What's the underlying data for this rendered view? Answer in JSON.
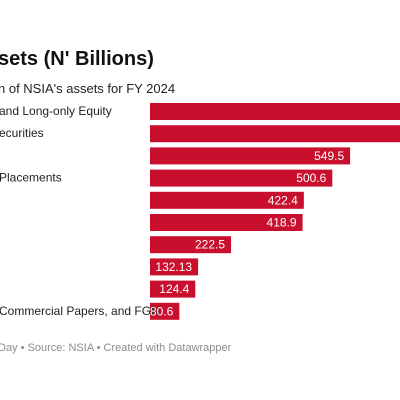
{
  "chart_data": {
    "type": "bar",
    "orientation": "horizontal",
    "title": "sets (N' Billions)",
    "subtitle": "n of NSIA's assets for FY 2024",
    "categories": [
      "and Long-only Equity",
      "ecurities",
      "",
      "Placements",
      "",
      "",
      "",
      "",
      "",
      "Commercial Papers, and FGN"
    ],
    "values": [
      null,
      null,
      549.5,
      500.6,
      422.4,
      418.9,
      222.5,
      132.13,
      124.4,
      80.6
    ],
    "value_labels": [
      "",
      "",
      "549.5",
      "500.6",
      "422.4",
      "418.9",
      "222.5",
      "132.13",
      "124.4",
      "80.6"
    ],
    "bar_color": "#c8102e",
    "label_color": "#ffffff",
    "footer": "Day • Source: NSIA • Created with Datawrapper"
  }
}
